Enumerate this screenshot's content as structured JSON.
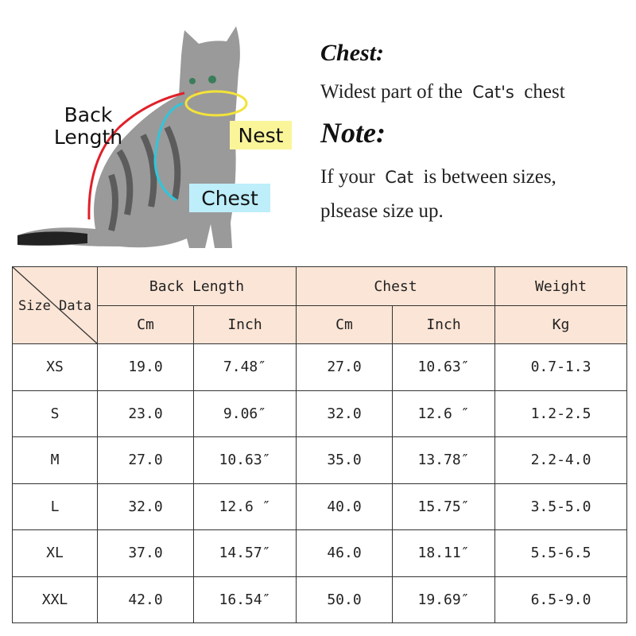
{
  "diagram": {
    "back_length_label": [
      "Back",
      "Length"
    ],
    "nest_label": "Nest",
    "chest_label": "Chest",
    "colors": {
      "back_length": "#e0202a",
      "nest": "#f2e33a",
      "chest": "#2fc6dc",
      "nest_bg": "#fbf59a",
      "chest_bg": "#bdeefa"
    }
  },
  "notes": {
    "chest_heading": "Chest:",
    "chest_text_1": "Widest part of the",
    "chest_text_cat": "Cat's",
    "chest_text_2": "chest",
    "note_heading": "Note:",
    "note_text_1a": "If your",
    "note_text_cat": "Cat",
    "note_text_1b": "is between sizes,",
    "note_text_2": "plsease size up."
  },
  "table": {
    "header_bg": "#fbe5d6",
    "corner_label": "Size Data",
    "groups": [
      "Back Length",
      "Chest",
      "Weight"
    ],
    "units": [
      "Cm",
      "Inch",
      "Cm",
      "Inch",
      "Kg"
    ],
    "rows": [
      [
        "XS",
        "19.0",
        "7.48″",
        "27.0",
        "10.63″",
        "0.7-1.3"
      ],
      [
        "S",
        "23.0",
        "9.06″",
        "32.0",
        "12.6 ″",
        "1.2-2.5"
      ],
      [
        "M",
        "27.0",
        "10.63″",
        "35.0",
        "13.78″",
        "2.2-4.0"
      ],
      [
        "L",
        "32.0",
        "12.6 ″",
        "40.0",
        "15.75″",
        "3.5-5.0"
      ],
      [
        "XL",
        "37.0",
        "14.57″",
        "46.0",
        "18.11″",
        "5.5-6.5"
      ],
      [
        "XXL",
        "42.0",
        "16.54″",
        "50.0",
        "19.69″",
        "6.5-9.0"
      ]
    ]
  }
}
